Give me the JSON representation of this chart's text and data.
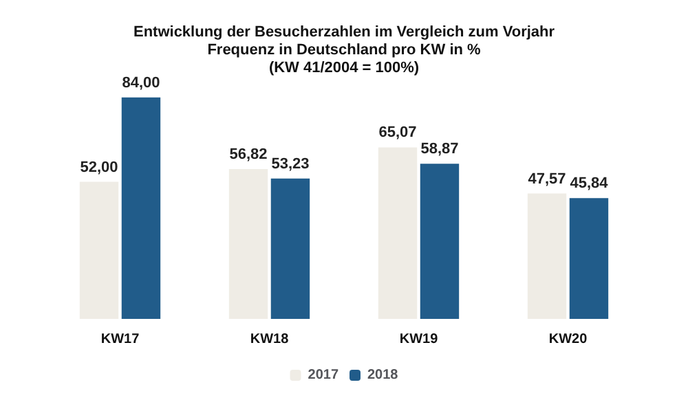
{
  "chart_data": {
    "type": "bar",
    "title": "Entwicklung der Besucherzahlen im Vergleich zum Vorjahr\nFrequenz in Deutschland pro KW in %\n(KW 41/2004 = 100%)",
    "categories": [
      "KW17",
      "KW18",
      "KW19",
      "KW20"
    ],
    "series": [
      {
        "name": "2017",
        "color": "#efece5",
        "values": [
          52.0,
          56.82,
          65.07,
          47.57
        ],
        "value_labels": [
          "52,00",
          "56,82",
          "65,07",
          "47,57"
        ]
      },
      {
        "name": "2018",
        "color": "#215c8a",
        "values": [
          84.0,
          53.23,
          58.87,
          45.84
        ],
        "value_labels": [
          "84,00",
          "53,23",
          "58,87",
          "45,84"
        ]
      }
    ],
    "legend": "bottom"
  }
}
